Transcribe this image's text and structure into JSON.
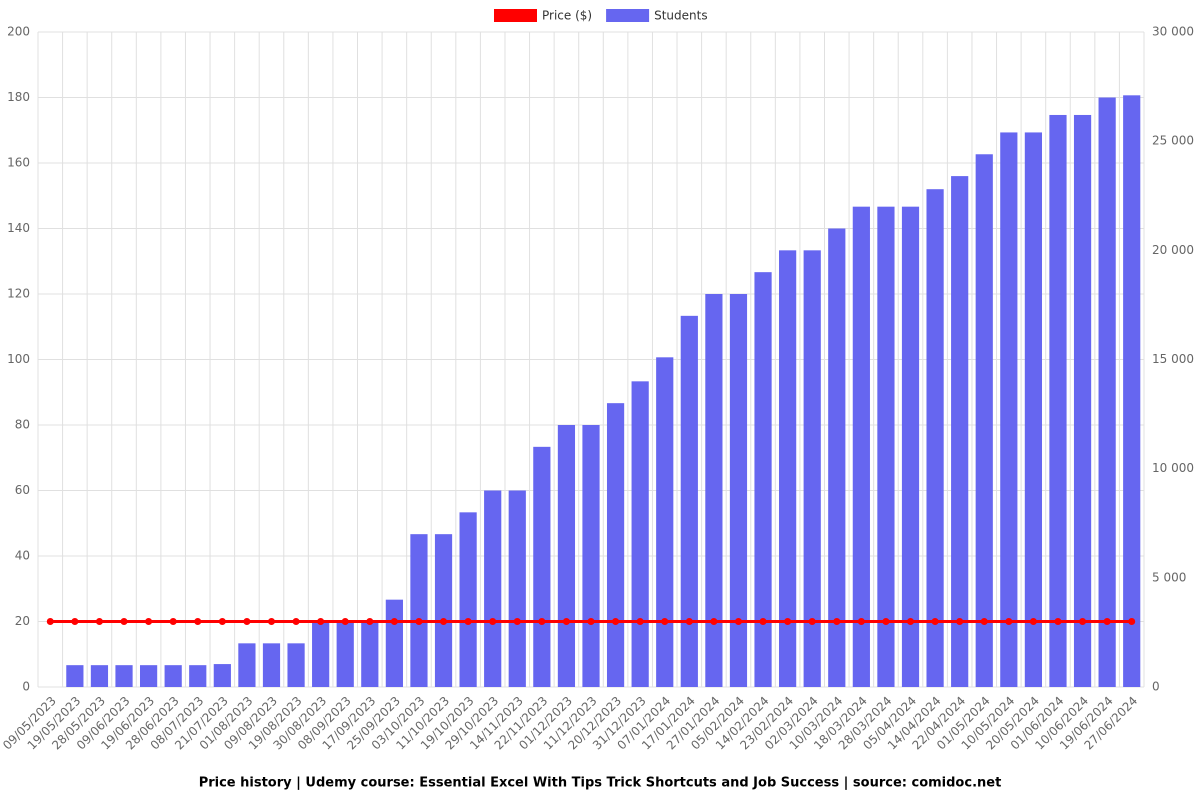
{
  "chart_data": {
    "type": "bar",
    "title": "Price history | Udemy course: Essential Excel With Tips Trick Shortcuts and Job Success | source: comidoc.net",
    "categories": [
      "09/05/2023",
      "19/05/2023",
      "28/05/2023",
      "09/06/2023",
      "19/06/2023",
      "28/06/2023",
      "08/07/2023",
      "21/07/2023",
      "01/08/2023",
      "09/08/2023",
      "19/08/2023",
      "30/08/2023",
      "08/09/2023",
      "17/09/2023",
      "25/09/2023",
      "03/10/2023",
      "11/10/2023",
      "19/10/2023",
      "29/10/2023",
      "14/11/2023",
      "22/11/2023",
      "01/12/2023",
      "11/12/2023",
      "20/12/2023",
      "31/12/2023",
      "07/01/2024",
      "17/01/2024",
      "27/01/2024",
      "05/02/2024",
      "14/02/2024",
      "23/02/2024",
      "02/03/2024",
      "10/03/2024",
      "18/03/2024",
      "28/03/2024",
      "05/04/2024",
      "14/04/2024",
      "22/04/2024",
      "01/05/2024",
      "10/05/2024",
      "20/05/2024",
      "01/06/2024",
      "10/06/2024",
      "19/06/2024",
      "27/06/2024"
    ],
    "series": [
      {
        "name": "Price ($)",
        "type": "line",
        "color": "#ff0000",
        "values": [
          20,
          20,
          20,
          20,
          20,
          20,
          20,
          20,
          20,
          20,
          20,
          20,
          20,
          20,
          20,
          20,
          20,
          20,
          20,
          20,
          20,
          20,
          20,
          20,
          20,
          20,
          20,
          20,
          20,
          20,
          20,
          20,
          20,
          20,
          20,
          20,
          20,
          20,
          20,
          20,
          20,
          20,
          20,
          20,
          20
        ]
      },
      {
        "name": "Students",
        "type": "bar",
        "axis": "y2",
        "color": "#6666f0",
        "values": [
          0,
          1000,
          1000,
          1000,
          1000,
          1000,
          1000,
          1050,
          2000,
          2000,
          2000,
          3000,
          3000,
          3000,
          4000,
          7000,
          7000,
          8000,
          9000,
          9000,
          11000,
          12000,
          12000,
          13000,
          14000,
          15100,
          17000,
          18000,
          18000,
          19000,
          20000,
          20000,
          21000,
          22000,
          22000,
          22000,
          22800,
          23400,
          24400,
          25400,
          25400,
          26200,
          26200,
          27000,
          27100
        ]
      }
    ],
    "ylim": [
      0,
      200
    ],
    "yticks": [
      0,
      20,
      40,
      60,
      80,
      100,
      120,
      140,
      160,
      180,
      200
    ],
    "y2lim": [
      0,
      30000
    ],
    "y2ticks": [
      0,
      {
        "value": 5000,
        "label": "5 000"
      },
      {
        "value": 10000,
        "label": "10 000"
      },
      {
        "value": 15000,
        "label": "15 000"
      },
      {
        "value": 20000,
        "label": "20 000"
      },
      {
        "value": 25000,
        "label": "25 000"
      },
      {
        "value": 30000,
        "label": "30 000"
      }
    ],
    "grid": true,
    "legend": "top"
  }
}
